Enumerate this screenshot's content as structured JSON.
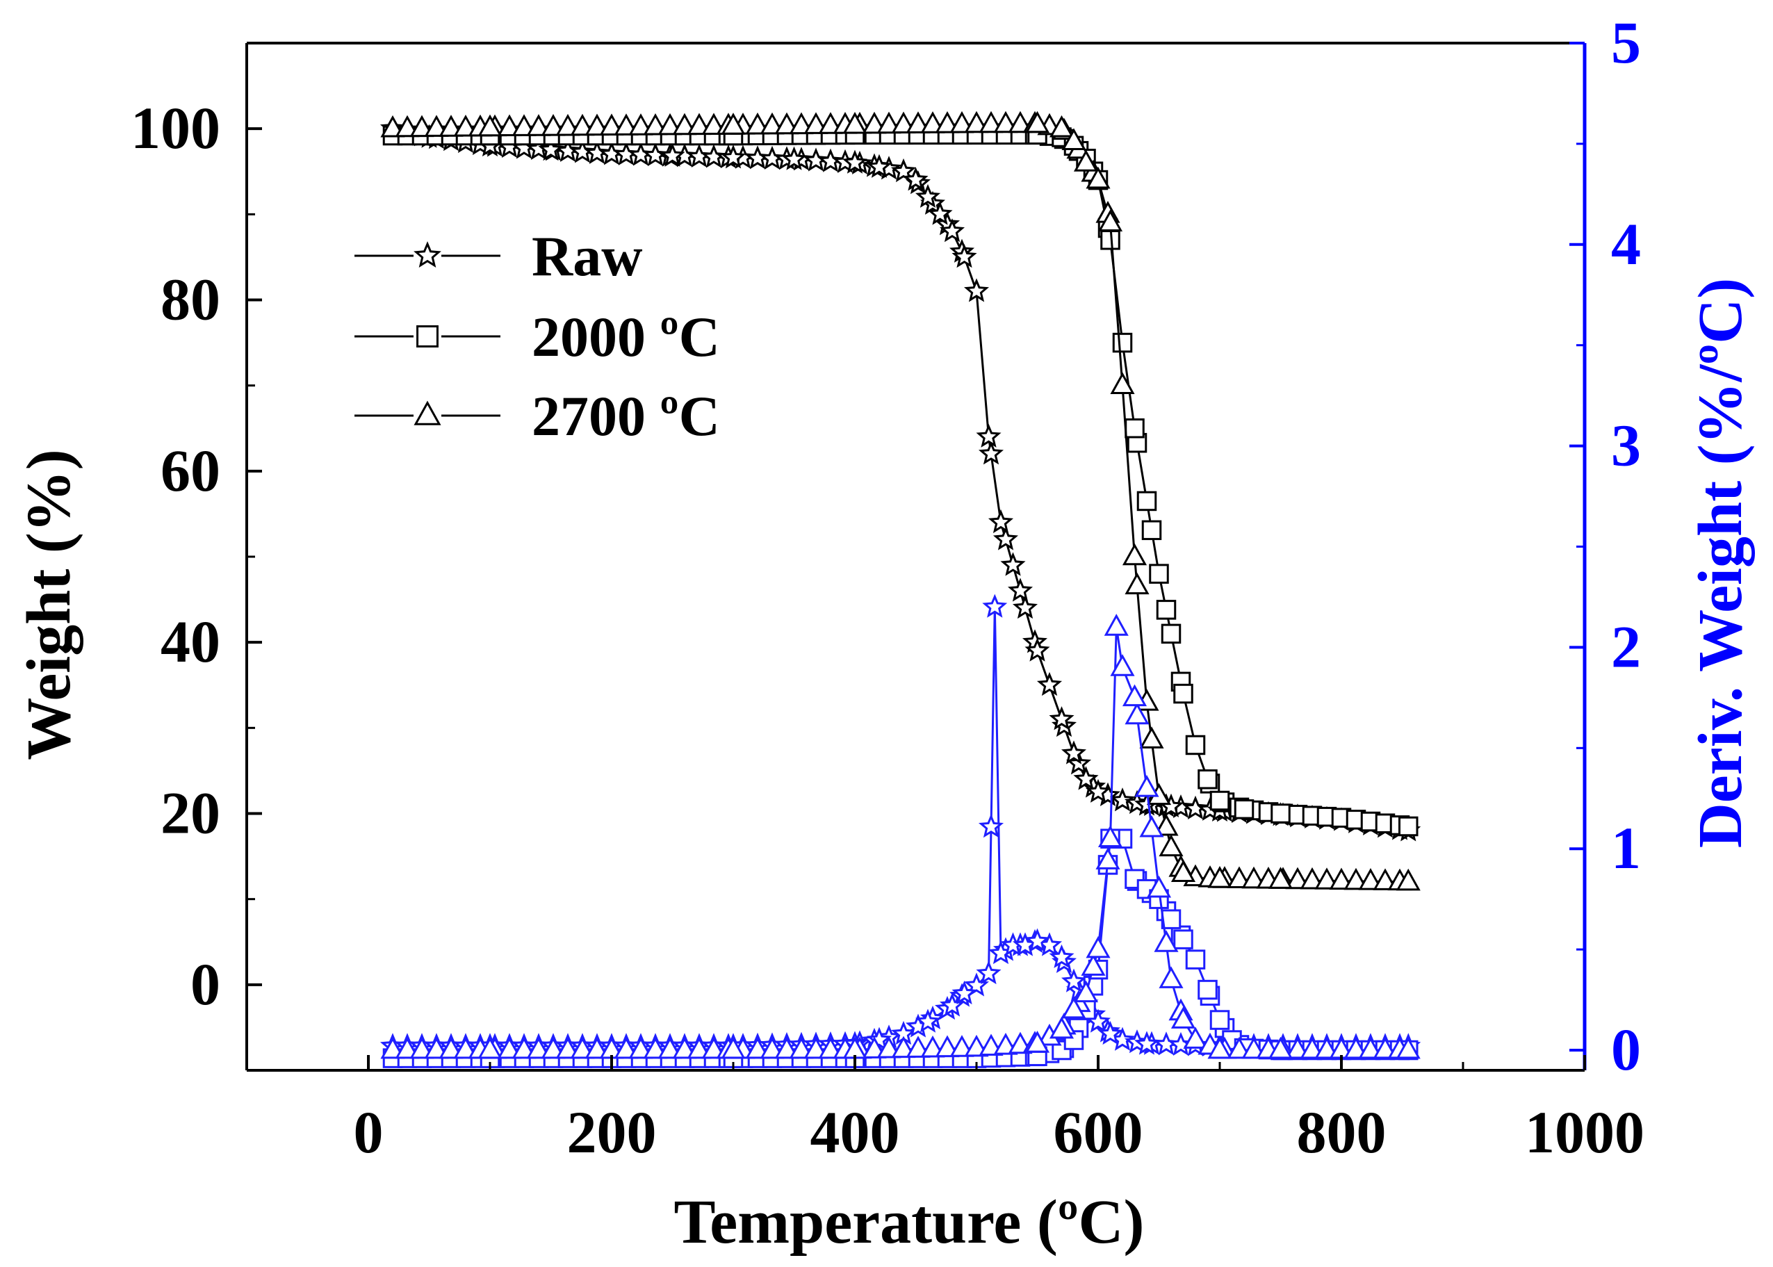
{
  "chart_data": {
    "type": "line",
    "title": "",
    "xlabel": "Temperature (ºC)",
    "ylabel": "Weight (%)",
    "y2label": "Deriv. Weight (%/ºC)",
    "xlim": [
      -100,
      1000
    ],
    "ylim": [
      -10,
      110
    ],
    "y2lim": [
      -0.1,
      5
    ],
    "xticks": [
      0,
      200,
      400,
      600,
      800,
      1000
    ],
    "xtick_labels": [
      "0",
      "200",
      "400",
      "600",
      "800",
      "1000"
    ],
    "yticks": [
      0,
      20,
      40,
      60,
      80,
      100
    ],
    "ytick_labels": [
      "0",
      "20",
      "40",
      "60",
      "80",
      "100"
    ],
    "y2ticks": [
      0,
      1,
      2,
      3,
      4,
      5
    ],
    "y2tick_labels": [
      "0",
      "1",
      "2",
      "3",
      "4",
      "5"
    ],
    "colors": {
      "weight": "#000000",
      "deriv": "#1f1fff",
      "axis_right": "#0000ff"
    },
    "legend": {
      "position": "top-left",
      "entries": [
        {
          "label": "Raw",
          "marker": "star"
        },
        {
          "label": "2000 ºC",
          "marker": "square"
        },
        {
          "label": "2700 ºC",
          "marker": "triangle"
        }
      ]
    },
    "series": [
      {
        "name": "Raw",
        "axis": "left",
        "kind": "weight",
        "marker": "star",
        "x": [
          20,
          50,
          100,
          150,
          200,
          250,
          300,
          350,
          400,
          420,
          440,
          450,
          460,
          470,
          480,
          490,
          500,
          510,
          520,
          530,
          540,
          550,
          560,
          570,
          580,
          590,
          600,
          620,
          640,
          660,
          700,
          750,
          800,
          855
        ],
        "y": [
          100,
          99,
          98,
          97.5,
          97,
          96.8,
          96.6,
          96.4,
          96,
          95.5,
          95,
          94,
          92,
          90,
          88,
          85,
          81,
          64,
          54,
          49,
          44,
          39,
          35,
          31,
          27,
          24,
          22.5,
          21.5,
          21,
          20.8,
          20.3,
          19.8,
          19.2,
          18
        ]
      },
      {
        "name": "2000 ºC",
        "axis": "left",
        "kind": "weight",
        "marker": "square",
        "x": [
          20,
          100,
          200,
          300,
          400,
          500,
          550,
          570,
          580,
          590,
          600,
          610,
          620,
          630,
          640,
          650,
          660,
          670,
          680,
          690,
          700,
          720,
          750,
          800,
          855
        ],
        "y": [
          99.2,
          99.2,
          99.2,
          99.2,
          99.3,
          99.3,
          99.3,
          99,
          98,
          96.5,
          94,
          87,
          75,
          65,
          56.5,
          48,
          41,
          34,
          28,
          24,
          21.5,
          20.5,
          20,
          19.5,
          18.5
        ]
      },
      {
        "name": "2700 ºC",
        "axis": "left",
        "kind": "weight",
        "marker": "triangle",
        "x": [
          20,
          100,
          200,
          300,
          400,
          500,
          550,
          570,
          580,
          590,
          600,
          610,
          620,
          630,
          640,
          650,
          660,
          670,
          680,
          700,
          750,
          800,
          855
        ],
        "y": [
          100,
          100.1,
          100.2,
          100.3,
          100.4,
          100.5,
          100.5,
          100,
          98.5,
          96,
          94,
          89,
          70,
          50,
          33,
          22,
          16,
          13,
          12.5,
          12.3,
          12.2,
          12.1,
          12
        ]
      },
      {
        "name": "Raw (deriv.)",
        "axis": "right",
        "kind": "deriv",
        "marker": "star",
        "x": [
          20,
          100,
          200,
          300,
          400,
          420,
          440,
          460,
          480,
          490,
          500,
          510,
          515,
          520,
          530,
          540,
          550,
          560,
          570,
          580,
          590,
          600,
          610,
          620,
          640,
          700,
          800,
          855
        ],
        "y": [
          0.02,
          0.02,
          0.02,
          0.02,
          0.03,
          0.05,
          0.08,
          0.14,
          0.22,
          0.28,
          0.32,
          0.38,
          2.2,
          0.48,
          0.52,
          0.52,
          0.54,
          0.52,
          0.46,
          0.34,
          0.23,
          0.14,
          0.08,
          0.05,
          0.03,
          0.02,
          0.02,
          0.02
        ]
      },
      {
        "name": "2000 ºC (deriv.)",
        "axis": "right",
        "kind": "deriv",
        "marker": "square",
        "x": [
          20,
          100,
          200,
          300,
          400,
          500,
          550,
          570,
          580,
          590,
          600,
          610,
          620,
          630,
          640,
          650,
          660,
          670,
          680,
          690,
          700,
          710,
          720,
          750,
          800,
          855
        ],
        "y": [
          -0.04,
          -0.04,
          -0.04,
          -0.04,
          -0.04,
          -0.04,
          -0.03,
          0.0,
          0.05,
          0.2,
          0.4,
          1.05,
          1.05,
          0.85,
          0.8,
          0.75,
          0.65,
          0.55,
          0.45,
          0.3,
          0.15,
          0.05,
          0.01,
          0.0,
          0.0,
          0.0
        ]
      },
      {
        "name": "2700 ºC (deriv.)",
        "axis": "right",
        "kind": "deriv",
        "marker": "triangle",
        "x": [
          20,
          100,
          200,
          300,
          400,
          500,
          550,
          570,
          580,
          590,
          600,
          610,
          615,
          620,
          630,
          640,
          650,
          660,
          670,
          680,
          700,
          750,
          800,
          855
        ],
        "y": [
          0.0,
          0.0,
          0.0,
          0.0,
          0.0,
          0.01,
          0.03,
          0.1,
          0.2,
          0.28,
          0.5,
          1.05,
          2.1,
          1.9,
          1.75,
          1.3,
          0.8,
          0.35,
          0.15,
          0.05,
          0.0,
          0.0,
          0.0,
          0.0
        ]
      }
    ]
  }
}
